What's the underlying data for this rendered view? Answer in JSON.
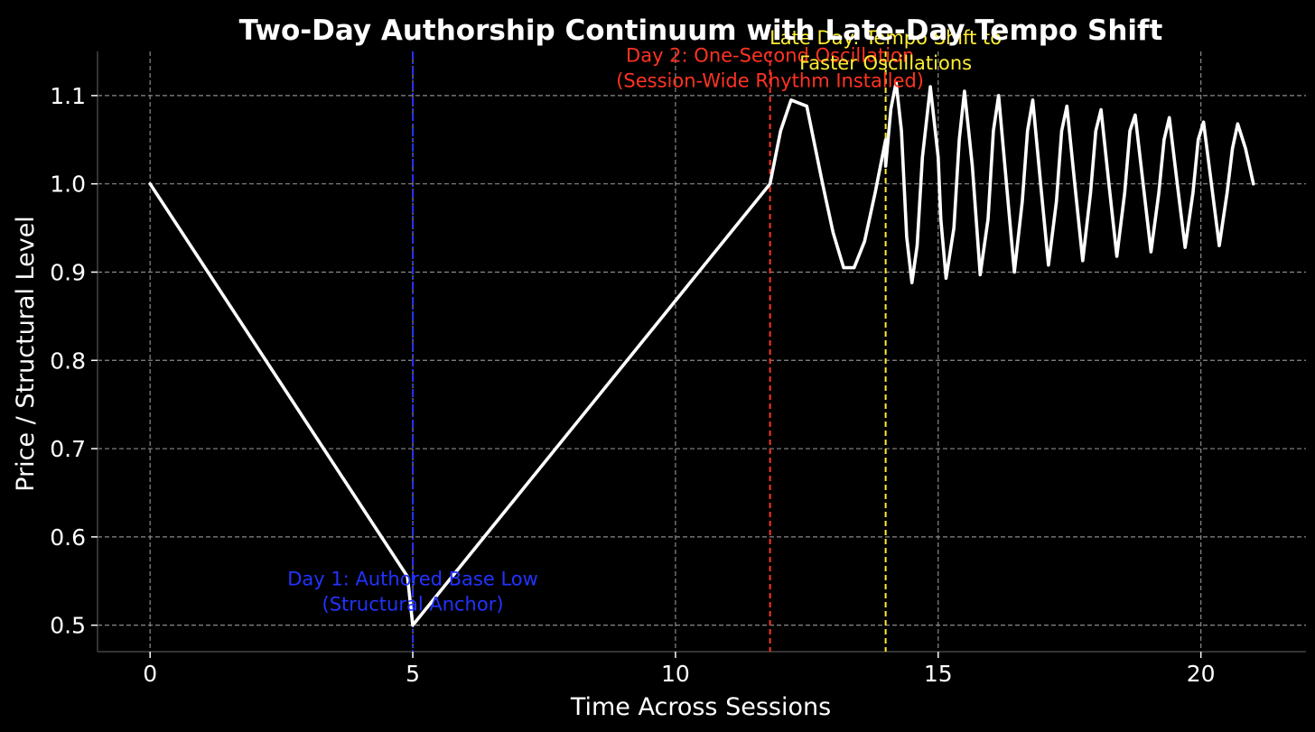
{
  "chart_data": {
    "type": "line",
    "title": "Two-Day Authorship Continuum with Late-Day Tempo Shift",
    "xlabel": "Time Across Sessions",
    "ylabel": "Price / Structural Level",
    "xlim": [
      -1,
      22
    ],
    "ylim": [
      0.47,
      1.15
    ],
    "grid": true,
    "xticks": [
      {
        "value": 0,
        "label": "0"
      },
      {
        "value": 5,
        "label": "5"
      },
      {
        "value": 10,
        "label": "10"
      },
      {
        "value": 15,
        "label": "15"
      },
      {
        "value": 20,
        "label": "20"
      }
    ],
    "yticks": [
      {
        "value": 0.5,
        "label": "0.5"
      },
      {
        "value": 0.6,
        "label": "0.6"
      },
      {
        "value": 0.7,
        "label": "0.7"
      },
      {
        "value": 0.8,
        "label": "0.8"
      },
      {
        "value": 0.9,
        "label": "0.9"
      },
      {
        "value": 1.0,
        "label": "1.0"
      },
      {
        "value": 1.1,
        "label": "1.1"
      }
    ],
    "series": [
      {
        "color": "#ffffff",
        "points": [
          [
            0,
            1.0
          ],
          [
            4.9,
            0.555
          ],
          [
            5.0,
            0.5
          ],
          [
            11.8,
            1.0
          ],
          [
            12.0,
            1.06
          ],
          [
            12.2,
            1.095
          ],
          [
            12.5,
            1.088
          ],
          [
            12.8,
            1.0
          ],
          [
            13.0,
            0.945
          ],
          [
            13.2,
            0.905
          ],
          [
            13.4,
            0.905
          ],
          [
            13.6,
            0.935
          ],
          [
            13.8,
            0.99
          ],
          [
            14.0,
            1.05
          ],
          [
            14.0,
            1.02
          ],
          [
            14.1,
            1.085
          ],
          [
            14.2,
            1.115
          ],
          [
            14.3,
            1.06
          ],
          [
            14.4,
            0.94
          ],
          [
            14.5,
            0.888
          ],
          [
            14.6,
            0.93
          ],
          [
            14.7,
            1.03
          ],
          [
            14.85,
            1.11
          ],
          [
            15.0,
            1.03
          ],
          [
            15.05,
            0.96
          ],
          [
            15.15,
            0.893
          ],
          [
            15.3,
            0.95
          ],
          [
            15.4,
            1.05
          ],
          [
            15.5,
            1.105
          ],
          [
            15.65,
            1.02
          ],
          [
            15.8,
            0.897
          ],
          [
            15.95,
            0.96
          ],
          [
            16.05,
            1.06
          ],
          [
            16.15,
            1.1
          ],
          [
            16.3,
            1.0
          ],
          [
            16.45,
            0.9
          ],
          [
            16.6,
            0.98
          ],
          [
            16.7,
            1.06
          ],
          [
            16.8,
            1.095
          ],
          [
            16.95,
            1.0
          ],
          [
            17.1,
            0.908
          ],
          [
            17.25,
            0.98
          ],
          [
            17.35,
            1.06
          ],
          [
            17.45,
            1.088
          ],
          [
            17.6,
            1.0
          ],
          [
            17.75,
            0.913
          ],
          [
            17.9,
            0.99
          ],
          [
            18.0,
            1.06
          ],
          [
            18.1,
            1.084
          ],
          [
            18.25,
            1.0
          ],
          [
            18.4,
            0.918
          ],
          [
            18.55,
            0.99
          ],
          [
            18.65,
            1.06
          ],
          [
            18.75,
            1.078
          ],
          [
            18.9,
            1.0
          ],
          [
            19.05,
            0.923
          ],
          [
            19.2,
            0.99
          ],
          [
            19.3,
            1.05
          ],
          [
            19.4,
            1.075
          ],
          [
            19.55,
            1.0
          ],
          [
            19.7,
            0.928
          ],
          [
            19.85,
            0.99
          ],
          [
            19.95,
            1.05
          ],
          [
            20.05,
            1.07
          ],
          [
            20.2,
            1.0
          ],
          [
            20.35,
            0.93
          ],
          [
            20.5,
            0.99
          ],
          [
            20.6,
            1.04
          ],
          [
            20.7,
            1.068
          ],
          [
            20.85,
            1.04
          ],
          [
            21.0,
            1.0
          ]
        ]
      }
    ],
    "vlines": [
      {
        "x": 5.0,
        "color": "#2233ff",
        "style": "dashdot"
      },
      {
        "x": 11.8,
        "color": "#ff3322",
        "style": "dashed"
      },
      {
        "x": 14.0,
        "color": "#ffee33",
        "style": "dashed"
      }
    ],
    "annotations": [
      {
        "lines": [
          "Day 1: Authored Base Low",
          "(Structural Anchor)"
        ],
        "x": 5.0,
        "y": 0.545,
        "color": "#2233ff"
      },
      {
        "lines": [
          "Day 2: One-Second Oscillation",
          "(Session-Wide Rhythm Installed)"
        ],
        "x": 11.8,
        "y": 1.138,
        "color": "#ff3322"
      },
      {
        "lines": [
          "Late Day: Tempo Shift to",
          "Faster Oscillations"
        ],
        "x": 14.0,
        "y": 1.158,
        "color": "#ffee33"
      }
    ]
  }
}
